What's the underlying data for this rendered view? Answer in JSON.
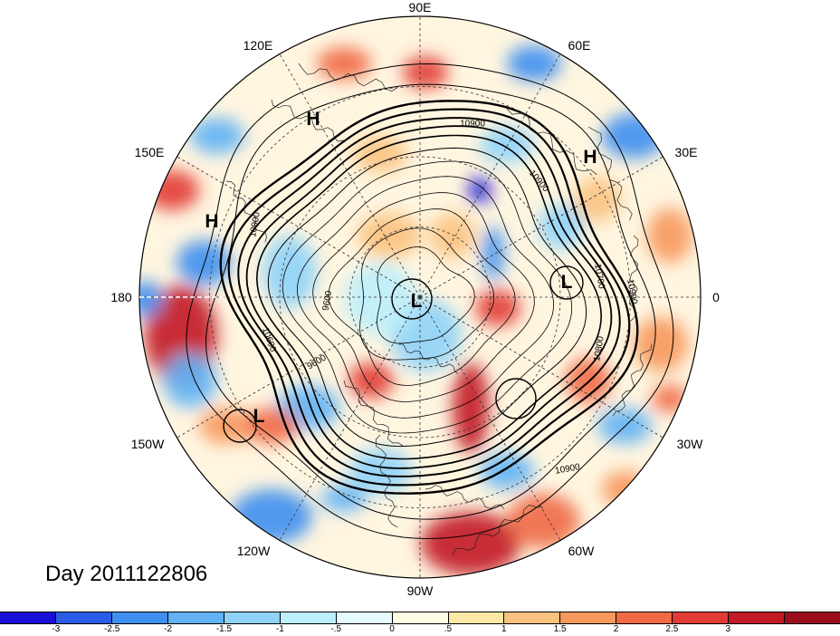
{
  "title": "Day 2011122806",
  "longitude_labels": [
    {
      "text": "90E",
      "id": "lon-90e"
    },
    {
      "text": "60E",
      "id": "lon-60e"
    },
    {
      "text": "30E",
      "id": "lon-30e"
    },
    {
      "text": "0",
      "id": "lon-0"
    },
    {
      "text": "30W",
      "id": "lon-30w"
    },
    {
      "text": "60W",
      "id": "lon-60w"
    },
    {
      "text": "90W",
      "id": "lon-90w"
    },
    {
      "text": "120W",
      "id": "lon-120w"
    },
    {
      "text": "150W",
      "id": "lon-150w"
    },
    {
      "text": "180",
      "id": "lon-180"
    },
    {
      "text": "150E",
      "id": "lon-150e"
    },
    {
      "text": "120E",
      "id": "lon-120e"
    }
  ],
  "pressure_centers": [
    {
      "type": "H",
      "id": "high-1"
    },
    {
      "type": "H",
      "id": "high-2"
    },
    {
      "type": "H",
      "id": "high-3"
    },
    {
      "type": "L",
      "id": "low-pole"
    },
    {
      "type": "L",
      "id": "low-europe"
    },
    {
      "type": "L",
      "id": "low-pacific"
    }
  ],
  "contour_labels": [
    {
      "text": "10900",
      "id": "cl-1"
    },
    {
      "text": "10900",
      "id": "cl-2"
    },
    {
      "text": "10900",
      "id": "cl-3"
    },
    {
      "text": "10900",
      "id": "cl-4"
    },
    {
      "text": "10900",
      "id": "cl-5"
    },
    {
      "text": "10800",
      "id": "cl-6"
    },
    {
      "text": "10700",
      "id": "cl-7"
    },
    {
      "text": "9600",
      "id": "cl-8"
    },
    {
      "text": "9600",
      "id": "cl-9"
    },
    {
      "text": "10600",
      "id": "cl-10"
    }
  ],
  "colorbar": {
    "colors": [
      "#1a0fd6",
      "#2a5ce6",
      "#3f8ff0",
      "#62b2f5",
      "#8fd3f8",
      "#bdeefb",
      "#e6fbfd",
      "#fffde2",
      "#fde8a6",
      "#fbc27f",
      "#f7985c",
      "#f06a45",
      "#e23a34",
      "#c21a24",
      "#9c0e1c"
    ],
    "ticks": [
      "-3",
      "-2.5",
      "-2",
      "-1.5",
      "-1",
      "-.5",
      "0",
      ".5",
      "1",
      "1.5",
      "2",
      "2.5",
      "3"
    ]
  }
}
